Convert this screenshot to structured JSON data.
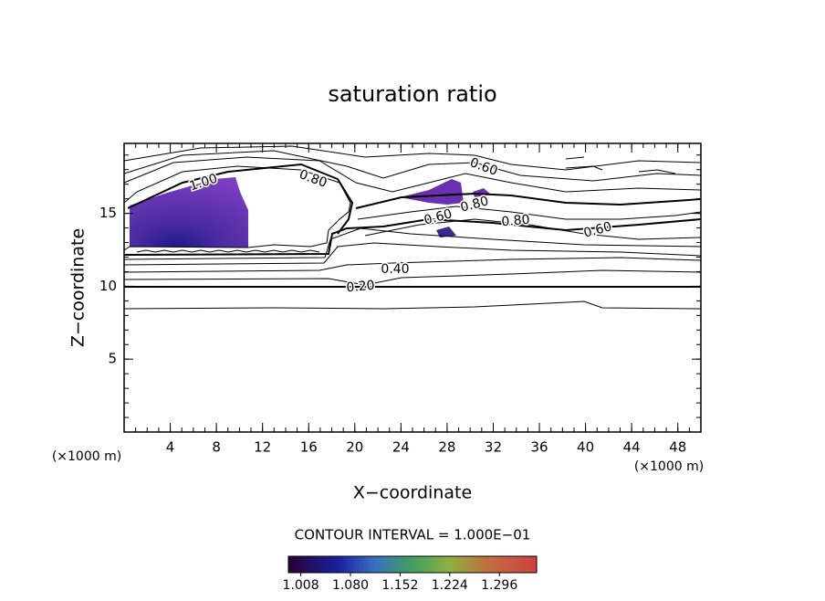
{
  "chart_data": {
    "type": "contour",
    "title": "saturation ratio",
    "xlabel": "X−coordinate",
    "ylabel": "Z−coordinate",
    "xlabel_unit": "(×1000 m)",
    "ylabel_unit": "(×1000 m)",
    "xlim": [
      0,
      50
    ],
    "ylim": [
      0,
      19.8
    ],
    "xticks": [
      4,
      8,
      12,
      16,
      20,
      24,
      28,
      32,
      36,
      40,
      44,
      48
    ],
    "yticks": [
      5,
      10,
      15
    ],
    "contour_interval_text": "CONTOUR INTERVAL = 1.000E−01",
    "contour_labels": [
      {
        "value": 1.0,
        "label": "1.00"
      },
      {
        "value": 0.8,
        "label": "0.80"
      },
      {
        "value": 0.6,
        "label": "0.60"
      },
      {
        "value": 0.6,
        "label": "0.60"
      },
      {
        "value": 0.8,
        "label": "0.80"
      },
      {
        "value": 0.8,
        "label": "0.80"
      },
      {
        "value": 0.6,
        "label": "0.60"
      },
      {
        "value": 0.4,
        "label": "0.40"
      },
      {
        "value": 0.2,
        "label": "0.20"
      }
    ],
    "clim": [
      0.99,
      1.35
    ],
    "colorbar_ticks": [
      {
        "value": 1.008,
        "label": "1.008"
      },
      {
        "value": 1.08,
        "label": "1.080"
      },
      {
        "value": 1.152,
        "label": "1.152"
      },
      {
        "value": 1.224,
        "label": "1.224"
      },
      {
        "value": 1.296,
        "label": "1.296"
      }
    ]
  }
}
